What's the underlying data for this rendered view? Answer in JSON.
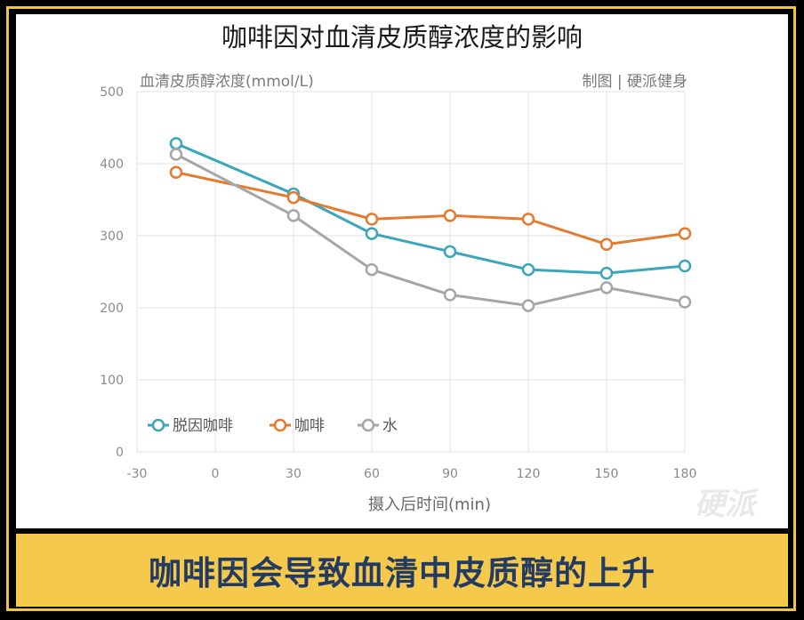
{
  "caption": "咖啡因会导致血清中皮质醇的上升",
  "watermark": "硬派",
  "chart_data": {
    "type": "line",
    "title": "咖啡因对血清皮质醇浓度的影响",
    "ylabel": "血清皮质醇浓度(mmol/L)",
    "xlabel": "摄入后时间(min)",
    "credit": "制图 | 硬派健身",
    "xlim": [
      -30,
      180
    ],
    "ylim": [
      0,
      500
    ],
    "x_ticks": [
      -30,
      0,
      30,
      60,
      90,
      120,
      150,
      180
    ],
    "y_ticks": [
      0,
      100,
      200,
      300,
      400,
      500
    ],
    "grid": true,
    "legend_position": "lower-left",
    "x": [
      -15,
      30,
      60,
      90,
      120,
      150,
      180
    ],
    "series": [
      {
        "name": "脱因咖啡",
        "color": "#3aa6b9",
        "values": [
          428,
          358,
          303,
          278,
          253,
          248,
          258
        ]
      },
      {
        "name": "咖啡",
        "color": "#e47b30",
        "values": [
          388,
          353,
          323,
          328,
          323,
          288,
          303
        ]
      },
      {
        "name": "水",
        "color": "#a6a6a6",
        "values": [
          413,
          328,
          253,
          218,
          203,
          228,
          208
        ]
      }
    ]
  }
}
